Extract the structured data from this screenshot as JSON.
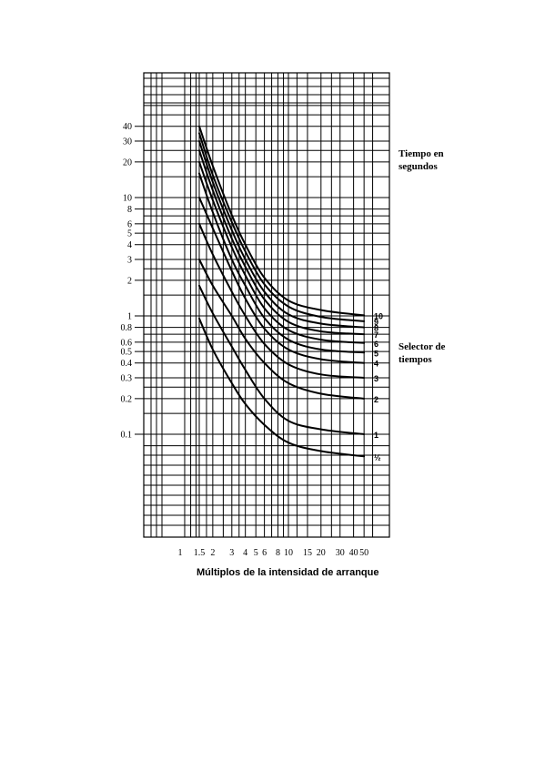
{
  "chart_data": {
    "type": "line",
    "title": "",
    "xlabel": "Múltiplos de la intensidad de arranque",
    "ylabel": "Tiempo en segundos",
    "legend_title": "Selector de tiempos",
    "x_scale": "log",
    "y_scale": "log",
    "x_tick_labels": [
      "1",
      "1.5",
      "2",
      "3",
      "4",
      "5",
      "6",
      "8",
      "10",
      "15",
      "20",
      "30",
      "40",
      "50"
    ],
    "y_tick_labels": [
      "40",
      "30",
      "20",
      "10",
      "8",
      "6",
      "5",
      "4",
      "3",
      "2",
      "1",
      "0.8",
      "0.6",
      "0.5",
      "0.4",
      "0.3",
      "0.2",
      "0.1"
    ],
    "series": [
      {
        "name": "10",
        "x": [
          1.5,
          2,
          3,
          4,
          6,
          10,
          20,
          50
        ],
        "y": [
          40,
          18.5,
          7.1,
          4.0,
          2.1,
          1.35,
          1.12,
          1.01
        ]
      },
      {
        "name": "9",
        "x": [
          1.5,
          2,
          3,
          4,
          6,
          10,
          20,
          50
        ],
        "y": [
          35,
          15.5,
          6.2,
          3.5,
          1.85,
          1.2,
          0.98,
          0.9
        ]
      },
      {
        "name": "8",
        "x": [
          1.5,
          2,
          3,
          4,
          6,
          10,
          20,
          50
        ],
        "y": [
          30,
          13.5,
          5.3,
          3.0,
          1.6,
          1.03,
          0.86,
          0.8
        ]
      },
      {
        "name": "7",
        "x": [
          1.5,
          2,
          3,
          4,
          6,
          10,
          20,
          50
        ],
        "y": [
          25,
          11.5,
          4.5,
          2.6,
          1.38,
          0.89,
          0.74,
          0.7
        ]
      },
      {
        "name": "6",
        "x": [
          1.5,
          2,
          3,
          4,
          6,
          10,
          20,
          50
        ],
        "y": [
          20,
          9.5,
          3.8,
          2.2,
          1.16,
          0.76,
          0.63,
          0.59
        ]
      },
      {
        "name": "5",
        "x": [
          1.5,
          2,
          3,
          4,
          6,
          10,
          20,
          50
        ],
        "y": [
          16,
          7.5,
          3.0,
          1.8,
          0.96,
          0.63,
          0.52,
          0.49
        ]
      },
      {
        "name": "4",
        "x": [
          1.5,
          2,
          3,
          4,
          6,
          10,
          20,
          50
        ],
        "y": [
          10,
          5.5,
          2.4,
          1.4,
          0.78,
          0.52,
          0.43,
          0.4
        ]
      },
      {
        "name": "3",
        "x": [
          1.5,
          2,
          3,
          4,
          6,
          10,
          20,
          50
        ],
        "y": [
          6,
          3.3,
          1.6,
          1.0,
          0.58,
          0.39,
          0.32,
          0.3
        ]
      },
      {
        "name": "2",
        "x": [
          1.5,
          2,
          3,
          4,
          6,
          10,
          20,
          50
        ],
        "y": [
          3,
          1.8,
          1.0,
          0.64,
          0.4,
          0.27,
          0.22,
          0.2
        ]
      },
      {
        "name": "1",
        "x": [
          1.5,
          2,
          3,
          4,
          6,
          10,
          20,
          50
        ],
        "y": [
          1.8,
          1.05,
          0.55,
          0.35,
          0.2,
          0.13,
          0.11,
          0.1
        ]
      },
      {
        "name": "½",
        "x": [
          1.5,
          2,
          3,
          4,
          6,
          10,
          20,
          50
        ],
        "y": [
          0.95,
          0.52,
          0.27,
          0.18,
          0.12,
          0.085,
          0.072,
          0.065
        ]
      }
    ]
  }
}
